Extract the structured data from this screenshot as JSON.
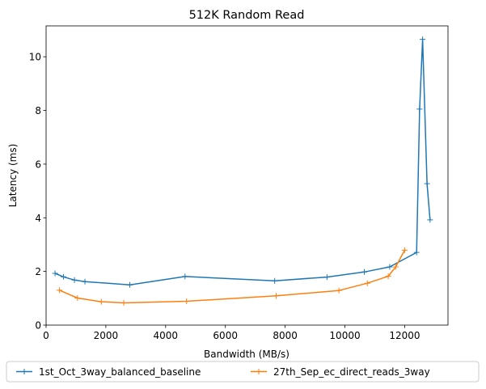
{
  "chart_data": {
    "type": "line",
    "title": "512K  Random Read",
    "xlabel": "Bandwidth (MB/s)",
    "ylabel": "Latency (ms)",
    "xlim": [
      0,
      13450
    ],
    "ylim": [
      0,
      11.15
    ],
    "xticks": [
      0,
      2000,
      4000,
      6000,
      8000,
      10000,
      12000
    ],
    "yticks": [
      0,
      2,
      4,
      6,
      8,
      10
    ],
    "grid": false,
    "legend_position": "below plot, centered",
    "series": [
      {
        "name": "1st_Oct_3way_balanced_baseline",
        "color": "#1f77b4",
        "marker": "+",
        "x": [
          300,
          580,
          950,
          1300,
          2800,
          4650,
          7650,
          9400,
          10650,
          11500,
          12400,
          12500,
          12600,
          12750,
          12850
        ],
        "y": [
          1.93,
          1.8,
          1.68,
          1.62,
          1.5,
          1.81,
          1.65,
          1.79,
          1.98,
          2.17,
          2.71,
          8.05,
          10.65,
          5.27,
          3.92
        ]
      },
      {
        "name": "27th_Sep_ec_direct_reads_3way",
        "color": "#ff7f0e",
        "marker": "+",
        "x": [
          450,
          1050,
          1850,
          2600,
          4700,
          7700,
          9800,
          10750,
          11450,
          11700,
          12000
        ],
        "y": [
          1.3,
          1.01,
          0.87,
          0.83,
          0.89,
          1.09,
          1.29,
          1.56,
          1.82,
          2.17,
          2.79
        ]
      }
    ]
  }
}
